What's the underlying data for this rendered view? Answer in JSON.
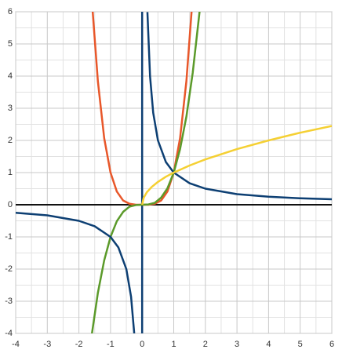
{
  "chart_data": {
    "type": "line",
    "xlim": [
      -4,
      6
    ],
    "ylim": [
      -4,
      6
    ],
    "xticks": [
      -4,
      -3,
      -2,
      -1,
      0,
      1,
      2,
      3,
      4,
      5,
      6
    ],
    "yticks": [
      -4,
      -3,
      -2,
      -1,
      0,
      1,
      2,
      3,
      4,
      5,
      6
    ],
    "x_minor_ticks": [
      -3.5,
      -2.5,
      -1.5,
      -0.5,
      0.5,
      1.5,
      2.5,
      3.5,
      4.5,
      5.5
    ],
    "y_minor_ticks": [
      -3.5,
      -2.5,
      -1.5,
      -0.5,
      0.5,
      1.5,
      2.5,
      3.5,
      4.5,
      5.5
    ],
    "grid": true,
    "x_axis_color": "#111111",
    "y_axis_color": "#0d3f73",
    "series": [
      {
        "color": "#e8572a",
        "x": [
          -1.57,
          -1.4,
          -1.2,
          -1,
          -0.8,
          -0.6,
          -0.4,
          -0.2,
          0,
          0.2,
          0.4,
          0.6,
          0.8,
          1,
          1.2,
          1.4,
          1.57
        ],
        "values": [
          6.08,
          3.84,
          2.07,
          1,
          0.41,
          0.13,
          0.03,
          0,
          0,
          0,
          0.03,
          0.13,
          0.41,
          1,
          2.07,
          3.84,
          6.08
        ]
      },
      {
        "color": "#5b9a2a",
        "x": [
          -1.59,
          -1.4,
          -1.2,
          -1,
          -0.8,
          -0.6,
          -0.4,
          -0.2,
          0,
          0.2,
          0.4,
          0.6,
          0.8,
          1,
          1.2,
          1.4,
          1.6,
          1.82
        ],
        "values": [
          -4.02,
          -2.74,
          -1.73,
          -1,
          -0.51,
          -0.22,
          -0.06,
          -0.01,
          0,
          0.01,
          0.06,
          0.22,
          0.51,
          1,
          1.73,
          2.74,
          4.1,
          6.03
        ]
      },
      {
        "color": "#0d3f73",
        "x": [
          -4,
          -3,
          -2,
          -1.5,
          -1,
          -0.75,
          -0.5,
          -0.35,
          -0.25,
          0,
          0.167,
          0.25,
          0.35,
          0.5,
          0.75,
          1,
          1.5,
          2,
          3,
          4,
          5,
          6
        ],
        "values": [
          -0.25,
          -0.33,
          -0.5,
          -0.67,
          -1,
          -1.33,
          -2,
          -2.86,
          -4,
          null,
          5.99,
          4,
          2.86,
          2,
          1.33,
          1,
          0.67,
          0.5,
          0.33,
          0.25,
          0.2,
          0.17
        ]
      },
      {
        "color": "#f5d033",
        "x": [
          0,
          0.05,
          0.15,
          0.3,
          0.5,
          0.75,
          1,
          1.5,
          2,
          3,
          4,
          5,
          6
        ],
        "values": [
          0,
          0.22,
          0.39,
          0.55,
          0.71,
          0.87,
          1,
          1.22,
          1.41,
          1.73,
          2,
          2.24,
          2.45
        ]
      }
    ]
  }
}
